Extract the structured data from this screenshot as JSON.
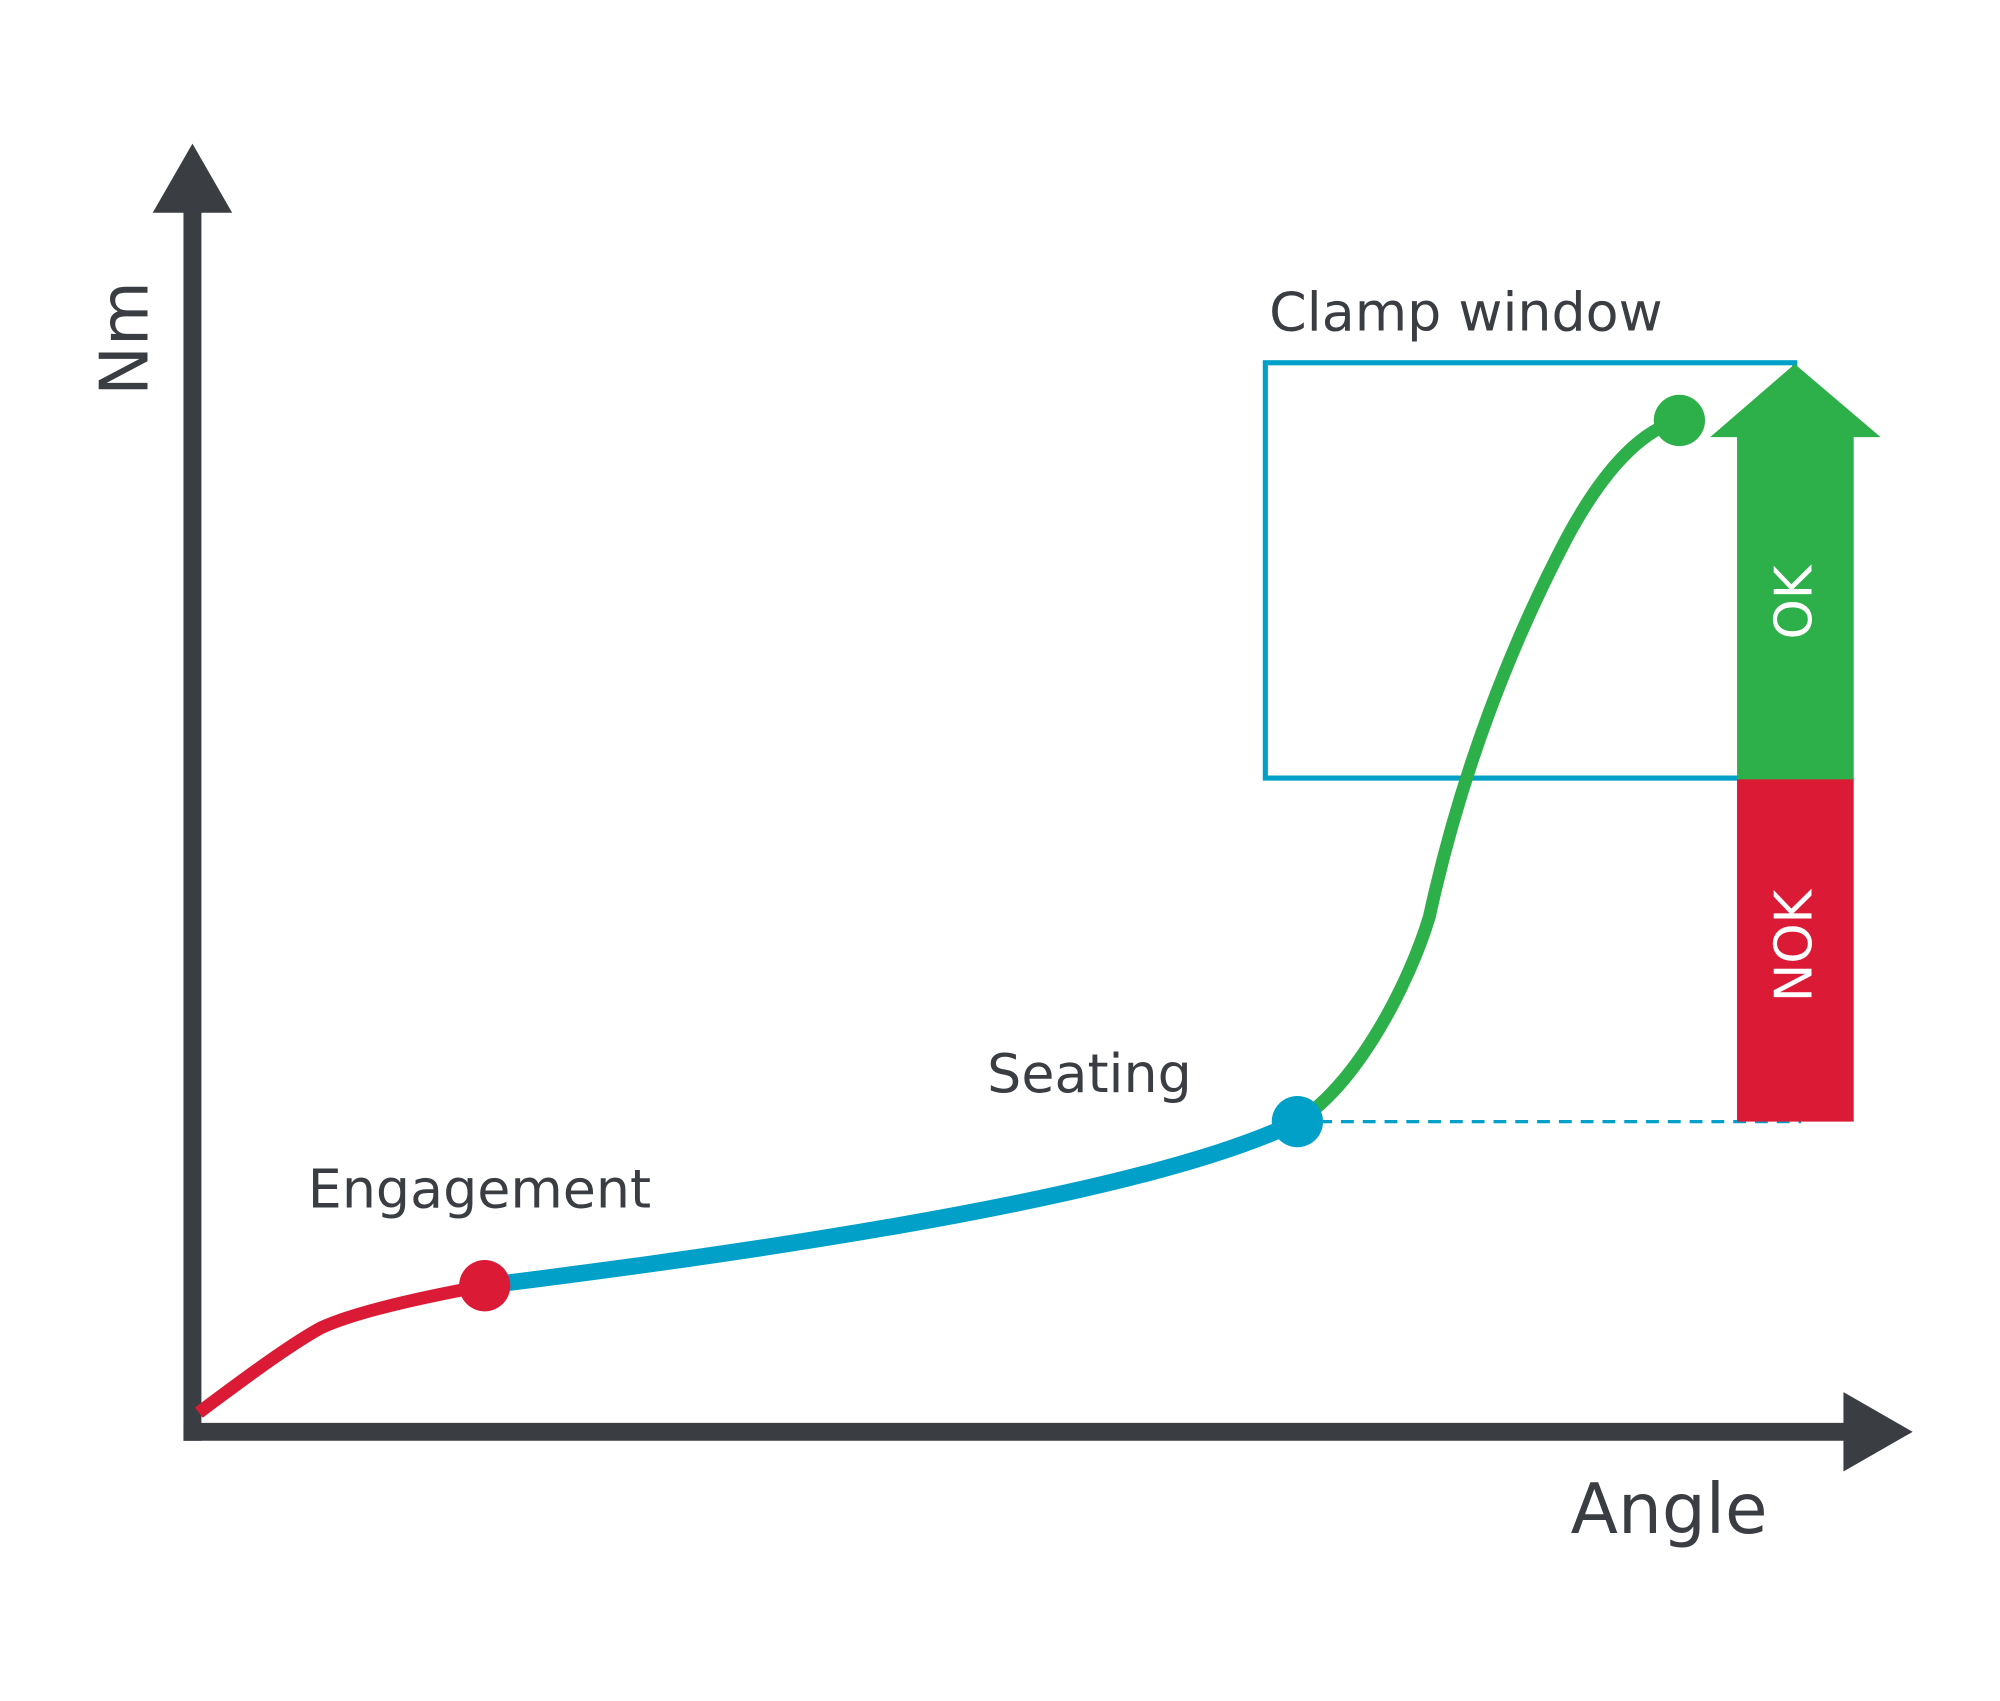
{
  "axes": {
    "y_label": "Nm",
    "x_label": "Angle"
  },
  "points": {
    "engagement": "Engagement",
    "seating": "Seating"
  },
  "clamp_window": {
    "label": "Clamp window"
  },
  "status_bar": {
    "ok": "OK",
    "nok": "NOK"
  }
}
